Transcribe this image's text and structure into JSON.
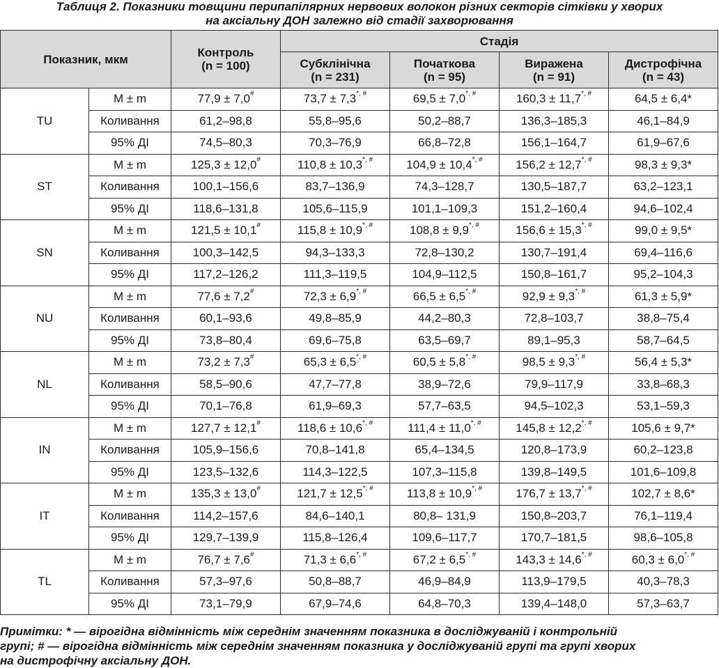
{
  "caption": {
    "line1": "Таблиця 2. Показники товщини перипапілярних нервових волокон різних секторів сітківки у хворих",
    "line2": "на аксіальну ДОН залежно від стадії захворювання"
  },
  "header": {
    "indicator": "Показник, мкм",
    "control": "Контроль",
    "control_n": "(n = 100)",
    "stage": "Стадія",
    "stages": [
      {
        "name": "Субклінічна",
        "n": "(n = 231)"
      },
      {
        "name": "Початкова",
        "n": "(n = 95)"
      },
      {
        "name": "Виражена",
        "n": "(n = 91)"
      },
      {
        "name": "Дистрофічна",
        "n": "(n = 43)"
      }
    ]
  },
  "row_labels": [
    "M ± m",
    "Коливання",
    "95% ДІ"
  ],
  "sectors": [
    {
      "name": "TU",
      "rows": [
        [
          [
            "77,9 ± 7,0",
            "#"
          ],
          [
            "73,7 ± 7,3",
            "*, #"
          ],
          [
            "69,5 ± 7,0",
            "*, #"
          ],
          [
            "160,3 ± 11,7",
            "*, #"
          ],
          [
            "64,5 ± 6,4*",
            ""
          ]
        ],
        [
          [
            "61,2–98,8",
            ""
          ],
          [
            "55,8–95,6",
            ""
          ],
          [
            "50,2–88,7",
            ""
          ],
          [
            "136,3–185,3",
            ""
          ],
          [
            "46,1–84,9",
            ""
          ]
        ],
        [
          [
            "74,5–80,3",
            ""
          ],
          [
            "70,3–76,9",
            ""
          ],
          [
            "66,8–72,8",
            ""
          ],
          [
            "156,1–164,7",
            ""
          ],
          [
            "61,9–67,6",
            ""
          ]
        ]
      ]
    },
    {
      "name": "ST",
      "rows": [
        [
          [
            "125,3 ± 12,0",
            "#"
          ],
          [
            "110,8 ± 10,3",
            "*, #"
          ],
          [
            "104,9 ± 10,4",
            "*, #"
          ],
          [
            "156,2 ± 12,7",
            "*, #"
          ],
          [
            "98,3 ± 9,3*",
            ""
          ]
        ],
        [
          [
            "100,1–156,6",
            ""
          ],
          [
            "83,7–136,9",
            ""
          ],
          [
            "74,3–128,7",
            ""
          ],
          [
            "130,5–187,7",
            ""
          ],
          [
            "63,2–123,1",
            ""
          ]
        ],
        [
          [
            "118,6–131,8",
            ""
          ],
          [
            "105,6–115,9",
            ""
          ],
          [
            "101,1–109,3",
            ""
          ],
          [
            "151,2–160,4",
            ""
          ],
          [
            "94,6–102,4",
            ""
          ]
        ]
      ]
    },
    {
      "name": "SN",
      "rows": [
        [
          [
            "121,5 ± 10,1",
            "#"
          ],
          [
            "115,8 ± 10,9",
            "*, #"
          ],
          [
            "108,8 ± 9,9",
            "*, #"
          ],
          [
            "156,6 ± 15,3",
            "*, #"
          ],
          [
            "99,0 ± 9,5*",
            ""
          ]
        ],
        [
          [
            "100,3–142,5",
            ""
          ],
          [
            "94,3–133,3",
            ""
          ],
          [
            "72,8–130,2",
            ""
          ],
          [
            "130,7–191,4",
            ""
          ],
          [
            "69,4–116,6",
            ""
          ]
        ],
        [
          [
            "117,2–126,2",
            ""
          ],
          [
            "111,3–119,5",
            ""
          ],
          [
            "104,9–112,5",
            ""
          ],
          [
            "150,8–161,7",
            ""
          ],
          [
            "95,2–104,3",
            ""
          ]
        ]
      ]
    },
    {
      "name": "NU",
      "rows": [
        [
          [
            "77,6 ± 7,2",
            "#"
          ],
          [
            "72,3 ± 6,9",
            "*, #"
          ],
          [
            "66,5 ± 6,5",
            "*, #"
          ],
          [
            "92,9 ± 9,3",
            "*, #"
          ],
          [
            "61,3 ± 5,9*",
            ""
          ]
        ],
        [
          [
            "60,1–93,6",
            ""
          ],
          [
            "49,8–85,9",
            ""
          ],
          [
            "44,2–80,3",
            ""
          ],
          [
            "72,8–103,7",
            ""
          ],
          [
            "38,8–75,4",
            ""
          ]
        ],
        [
          [
            "73,8–80,4",
            ""
          ],
          [
            "69,6–75,8",
            ""
          ],
          [
            "63,5–69,7",
            ""
          ],
          [
            "89,1–95,3",
            ""
          ],
          [
            "58,7–64,5",
            ""
          ]
        ]
      ]
    },
    {
      "name": "NL",
      "rows": [
        [
          [
            "73,2 ± 7,3",
            "#"
          ],
          [
            "65,3 ± 6,5",
            "*, #"
          ],
          [
            "60,5 ± 5,8",
            "*, #"
          ],
          [
            "98,5 ± 9,3",
            "*, #"
          ],
          [
            "56,4 ± 5,3*",
            ""
          ]
        ],
        [
          [
            "58,5–90,6",
            ""
          ],
          [
            "47,7–77,8",
            ""
          ],
          [
            "38,9–72,6",
            ""
          ],
          [
            "79,9–117,9",
            ""
          ],
          [
            "33,8–68,3",
            ""
          ]
        ],
        [
          [
            "70,1–76,8",
            ""
          ],
          [
            "61,9–69,3",
            ""
          ],
          [
            "57,7–63,5",
            ""
          ],
          [
            "94,5–102,3",
            ""
          ],
          [
            "53,1–59,3",
            ""
          ]
        ]
      ]
    },
    {
      "name": "IN",
      "rows": [
        [
          [
            "127,7 ± 12,1",
            "#"
          ],
          [
            "118,6 ± 10,6",
            "*, #"
          ],
          [
            "111,4 ± 11,0",
            "*, #"
          ],
          [
            "145,8 ± 12,2",
            "*, #"
          ],
          [
            "105,6 ± 9,7*",
            ""
          ]
        ],
        [
          [
            "105,9–156,6",
            ""
          ],
          [
            "70,8–141,8",
            ""
          ],
          [
            "65,4–134,5",
            ""
          ],
          [
            "120,8–173,9",
            ""
          ],
          [
            "60,2–123,8",
            ""
          ]
        ],
        [
          [
            "123,5–132,6",
            ""
          ],
          [
            "114,3–122,5",
            ""
          ],
          [
            "107,3–115,8",
            ""
          ],
          [
            "139,8–149,5",
            ""
          ],
          [
            "101,6–109,8",
            ""
          ]
        ]
      ]
    },
    {
      "name": "IT",
      "rows": [
        [
          [
            "135,3 ± 13,0",
            "#"
          ],
          [
            "121,7 ± 12,5",
            "*, #"
          ],
          [
            "113,8 ± 10,9",
            "*, #"
          ],
          [
            "176,7 ± 13,7",
            "*, #"
          ],
          [
            "102,7 ± 8,6*",
            ""
          ]
        ],
        [
          [
            "114,2–157,6",
            ""
          ],
          [
            "84,6–140,1",
            ""
          ],
          [
            "80,8– 131,9",
            ""
          ],
          [
            "150,8–203,7",
            ""
          ],
          [
            "76,1–119,4",
            ""
          ]
        ],
        [
          [
            "129,7–139,9",
            ""
          ],
          [
            "115,8–126,4",
            ""
          ],
          [
            "109,6–117,7",
            ""
          ],
          [
            "170,7–181,5",
            ""
          ],
          [
            "98,6–105,8",
            ""
          ]
        ]
      ]
    },
    {
      "name": "TL",
      "rows": [
        [
          [
            "76,7 ± 7,6",
            "#"
          ],
          [
            "71,3 ± 6,6",
            "*, #"
          ],
          [
            "67,2 ± 6,5",
            "*, #"
          ],
          [
            "143,3 ± 14,6",
            "*, #"
          ],
          [
            "60,3 ± 6,0",
            "*, #"
          ]
        ],
        [
          [
            "57,3–97,6",
            ""
          ],
          [
            "50,8–88,7",
            ""
          ],
          [
            "46,9–84,9",
            ""
          ],
          [
            "113,9–179,5",
            ""
          ],
          [
            "40,3–78,3",
            ""
          ]
        ],
        [
          [
            "73,1–79,9",
            ""
          ],
          [
            "67,9–74,6",
            ""
          ],
          [
            "64,8–70,3",
            ""
          ],
          [
            "139,4–148,0",
            ""
          ],
          [
            "57,3–63,7",
            ""
          ]
        ]
      ]
    }
  ],
  "notes": {
    "line1": "Примітки: * — вірогідна відмінність між середнім значенням показника в досліджуваній і контрольній",
    "line2": "групі; # — вірогідна відмінність між середнім значенням показника у досліджуваній групі та групі хворих",
    "line3": "на дистрофічну аксіальну ДОН."
  }
}
